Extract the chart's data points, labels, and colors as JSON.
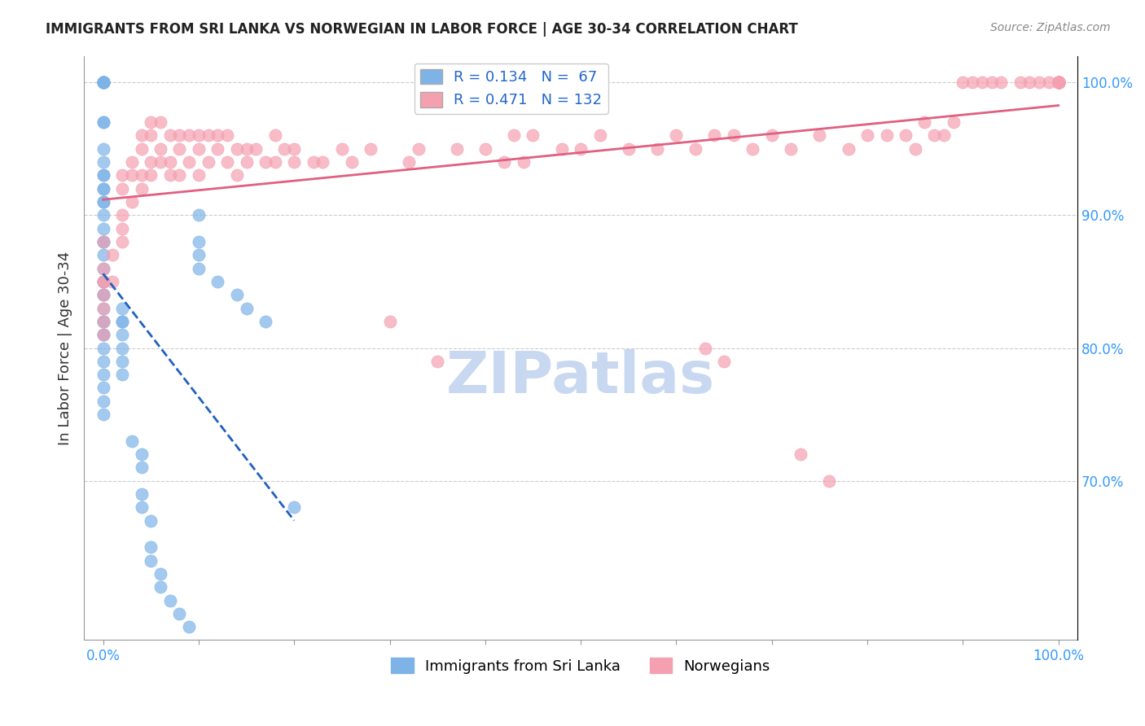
{
  "title": "IMMIGRANTS FROM SRI LANKA VS NORWEGIAN IN LABOR FORCE | AGE 30-34 CORRELATION CHART",
  "source": "Source: ZipAtlas.com",
  "xlabel_bottom": "",
  "ylabel": "In Labor Force | Age 30-34",
  "xlim": [
    0.0,
    1.0
  ],
  "ylim": [
    0.58,
    1.02
  ],
  "x_ticks": [
    0.0,
    0.1,
    0.2,
    0.3,
    0.4,
    0.5,
    0.6,
    0.7,
    0.8,
    0.9,
    1.0
  ],
  "x_tick_labels": [
    "0.0%",
    "",
    "",
    "",
    "",
    "",
    "",
    "",
    "",
    "",
    "100.0%"
  ],
  "y_tick_labels_right": [
    "70.0%",
    "80.0%",
    "90.0%",
    "100.0%"
  ],
  "y_tick_vals_right": [
    0.7,
    0.8,
    0.9,
    1.0
  ],
  "R_blue": 0.134,
  "N_blue": 67,
  "R_pink": 0.471,
  "N_pink": 132,
  "blue_color": "#7EB3E8",
  "pink_color": "#F4A0B0",
  "blue_line_color": "#2060C0",
  "pink_line_color": "#E06080",
  "watermark": "ZIPatlas",
  "watermark_color": "#C8D8F0",
  "grid_color": "#CCCCCC",
  "blue_scatter_x": [
    0.0,
    0.0,
    0.0,
    0.0,
    0.0,
    0.0,
    0.0,
    0.0,
    0.0,
    0.0,
    0.0,
    0.0,
    0.0,
    0.0,
    0.0,
    0.0,
    0.0,
    0.0,
    0.0,
    0.0,
    0.0,
    0.0,
    0.0,
    0.0,
    0.0,
    0.0,
    0.0,
    0.0,
    0.0,
    0.0,
    0.0,
    0.0,
    0.0,
    0.0,
    0.0,
    0.0,
    0.0,
    0.0,
    0.02,
    0.02,
    0.02,
    0.02,
    0.02,
    0.02,
    0.02,
    0.03,
    0.04,
    0.04,
    0.04,
    0.04,
    0.05,
    0.05,
    0.05,
    0.06,
    0.06,
    0.07,
    0.08,
    0.09,
    0.1,
    0.1,
    0.1,
    0.1,
    0.12,
    0.14,
    0.15,
    0.17,
    0.2
  ],
  "blue_scatter_y": [
    1.0,
    1.0,
    1.0,
    1.0,
    1.0,
    1.0,
    1.0,
    0.97,
    0.97,
    0.95,
    0.94,
    0.93,
    0.93,
    0.92,
    0.92,
    0.91,
    0.91,
    0.9,
    0.89,
    0.88,
    0.88,
    0.87,
    0.86,
    0.85,
    0.85,
    0.84,
    0.84,
    0.83,
    0.82,
    0.82,
    0.81,
    0.81,
    0.8,
    0.79,
    0.78,
    0.77,
    0.76,
    0.75,
    0.83,
    0.82,
    0.82,
    0.81,
    0.8,
    0.79,
    0.78,
    0.73,
    0.72,
    0.71,
    0.69,
    0.68,
    0.67,
    0.65,
    0.64,
    0.63,
    0.62,
    0.61,
    0.6,
    0.59,
    0.9,
    0.88,
    0.87,
    0.86,
    0.85,
    0.84,
    0.83,
    0.82,
    0.68
  ],
  "pink_scatter_x": [
    0.0,
    0.0,
    0.0,
    0.0,
    0.0,
    0.0,
    0.0,
    0.0,
    0.01,
    0.01,
    0.02,
    0.02,
    0.02,
    0.02,
    0.02,
    0.03,
    0.03,
    0.03,
    0.04,
    0.04,
    0.04,
    0.04,
    0.05,
    0.05,
    0.05,
    0.05,
    0.06,
    0.06,
    0.06,
    0.07,
    0.07,
    0.07,
    0.08,
    0.08,
    0.08,
    0.09,
    0.09,
    0.1,
    0.1,
    0.1,
    0.11,
    0.11,
    0.12,
    0.12,
    0.13,
    0.13,
    0.14,
    0.14,
    0.15,
    0.15,
    0.16,
    0.17,
    0.18,
    0.18,
    0.19,
    0.2,
    0.2,
    0.22,
    0.23,
    0.25,
    0.26,
    0.28,
    0.3,
    0.32,
    0.33,
    0.35,
    0.37,
    0.4,
    0.42,
    0.43,
    0.44,
    0.45,
    0.48,
    0.5,
    0.52,
    0.55,
    0.58,
    0.6,
    0.62,
    0.63,
    0.64,
    0.65,
    0.66,
    0.68,
    0.7,
    0.72,
    0.73,
    0.75,
    0.76,
    0.78,
    0.8,
    0.82,
    0.84,
    0.85,
    0.86,
    0.87,
    0.88,
    0.89,
    0.9,
    0.91,
    0.92,
    0.93,
    0.94,
    0.96,
    0.97,
    0.98,
    0.99,
    1.0,
    1.0,
    1.0,
    1.0,
    1.0,
    1.0,
    1.0,
    1.0,
    1.0,
    1.0,
    1.0,
    1.0,
    1.0,
    1.0,
    1.0,
    1.0,
    1.0,
    1.0,
    1.0,
    1.0,
    1.0,
    1.0,
    1.0,
    1.0,
    1.0
  ],
  "pink_scatter_y": [
    0.88,
    0.86,
    0.85,
    0.85,
    0.84,
    0.83,
    0.82,
    0.81,
    0.87,
    0.85,
    0.93,
    0.92,
    0.9,
    0.89,
    0.88,
    0.94,
    0.93,
    0.91,
    0.96,
    0.95,
    0.93,
    0.92,
    0.97,
    0.96,
    0.94,
    0.93,
    0.97,
    0.95,
    0.94,
    0.96,
    0.94,
    0.93,
    0.96,
    0.95,
    0.93,
    0.96,
    0.94,
    0.96,
    0.95,
    0.93,
    0.96,
    0.94,
    0.96,
    0.95,
    0.96,
    0.94,
    0.95,
    0.93,
    0.95,
    0.94,
    0.95,
    0.94,
    0.96,
    0.94,
    0.95,
    0.95,
    0.94,
    0.94,
    0.94,
    0.95,
    0.94,
    0.95,
    0.82,
    0.94,
    0.95,
    0.79,
    0.95,
    0.95,
    0.94,
    0.96,
    0.94,
    0.96,
    0.95,
    0.95,
    0.96,
    0.95,
    0.95,
    0.96,
    0.95,
    0.8,
    0.96,
    0.79,
    0.96,
    0.95,
    0.96,
    0.95,
    0.72,
    0.96,
    0.7,
    0.95,
    0.96,
    0.96,
    0.96,
    0.95,
    0.97,
    0.96,
    0.96,
    0.97,
    1.0,
    1.0,
    1.0,
    1.0,
    1.0,
    1.0,
    1.0,
    1.0,
    1.0,
    1.0,
    1.0,
    1.0,
    1.0,
    1.0,
    1.0,
    1.0,
    1.0,
    1.0,
    1.0,
    1.0,
    1.0,
    1.0,
    1.0,
    1.0,
    1.0,
    1.0,
    1.0,
    1.0,
    1.0,
    1.0,
    1.0,
    1.0,
    1.0,
    1.0
  ]
}
